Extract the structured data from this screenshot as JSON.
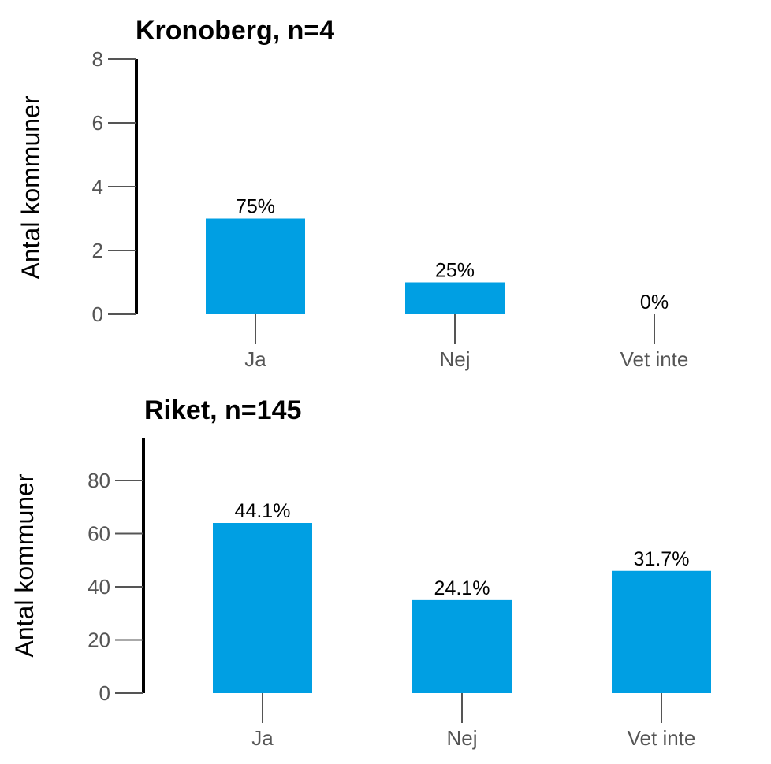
{
  "colors": {
    "bar": "#009fe3",
    "axis": "#000000",
    "tick": "#555555"
  },
  "chart_data": [
    {
      "type": "bar",
      "title": "Kronoberg, n=4",
      "xlabel": "",
      "ylabel": "Antal kommuner",
      "categories": [
        "Ja",
        "Nej",
        "Vet inte"
      ],
      "values": [
        3,
        1,
        0
      ],
      "data_labels": [
        "75%",
        "25%",
        "0%"
      ],
      "yticks": [
        "0",
        "2",
        "4",
        "6",
        "8"
      ],
      "ylim": [
        0,
        8
      ],
      "grid": false,
      "legend": "none"
    },
    {
      "type": "bar",
      "title": "Riket, n=145",
      "xlabel": "",
      "ylabel": "Antal kommuner",
      "categories": [
        "Ja",
        "Nej",
        "Vet inte"
      ],
      "values": [
        64,
        35,
        46
      ],
      "data_labels": [
        "44.1%",
        "24.1%",
        "31.7%"
      ],
      "yticks": [
        "0",
        "20",
        "40",
        "60",
        "80"
      ],
      "ylim": [
        0,
        96
      ],
      "grid": false,
      "legend": "none"
    }
  ]
}
